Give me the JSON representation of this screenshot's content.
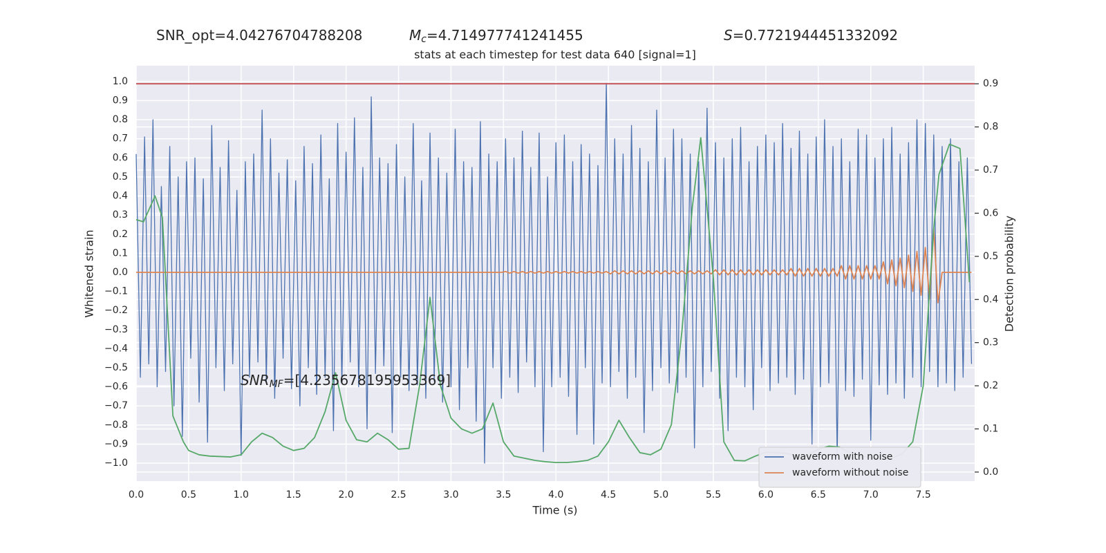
{
  "chart_data": {
    "type": "line",
    "title": "stats at each timestep for test data 640 [signal=1]",
    "annotations": [
      {
        "text": "SNR_opt=4.04276704788208"
      },
      {
        "symbol": "M",
        "subscript": "c",
        "text": "=4.714977741241455"
      },
      {
        "symbol": "S",
        "text": "=0.7721944451332092"
      },
      {
        "symbol": "SNR",
        "subscript": "MF",
        "text": "=[4.235678195953369]"
      }
    ],
    "xlabel": "Time (s)",
    "ylabel": "Whitened strain",
    "y2label": "Detection probability",
    "x": [
      0,
      0.04,
      0.08,
      0.12,
      0.16,
      0.2,
      0.24,
      0.28,
      0.32,
      0.36,
      0.4,
      0.44,
      0.48,
      0.52,
      0.56,
      0.6,
      0.64,
      0.68,
      0.72,
      0.76,
      0.8,
      0.84,
      0.88,
      0.92,
      0.96,
      1,
      1.04,
      1.08,
      1.12,
      1.16,
      1.2,
      1.24,
      1.28,
      1.32,
      1.36,
      1.4,
      1.44,
      1.48,
      1.52,
      1.56,
      1.6,
      1.64,
      1.68,
      1.72,
      1.76,
      1.8,
      1.84,
      1.88,
      1.92,
      1.96,
      2,
      2.04,
      2.08,
      2.12,
      2.16,
      2.2,
      2.24,
      2.28,
      2.32,
      2.36,
      2.4,
      2.44,
      2.48,
      2.52,
      2.56,
      2.6,
      2.64,
      2.68,
      2.72,
      2.76,
      2.8,
      2.84,
      2.88,
      2.92,
      2.96,
      3,
      3.04,
      3.08,
      3.12,
      3.16,
      3.2,
      3.24,
      3.28,
      3.32,
      3.36,
      3.4,
      3.44,
      3.48,
      3.52,
      3.56,
      3.6,
      3.64,
      3.68,
      3.72,
      3.76,
      3.8,
      3.84,
      3.88,
      3.92,
      3.96,
      4,
      4.04,
      4.08,
      4.12,
      4.16,
      4.2,
      4.24,
      4.28,
      4.32,
      4.36,
      4.4,
      4.44,
      4.48,
      4.52,
      4.56,
      4.6,
      4.64,
      4.68,
      4.72,
      4.76,
      4.8,
      4.84,
      4.88,
      4.92,
      4.96,
      5,
      5.04,
      5.08,
      5.12,
      5.16,
      5.2,
      5.24,
      5.28,
      5.32,
      5.36,
      5.4,
      5.44,
      5.48,
      5.52,
      5.56,
      5.6,
      5.64,
      5.68,
      5.72,
      5.76,
      5.8,
      5.84,
      5.88,
      5.92,
      5.96,
      6,
      6.04,
      6.08,
      6.12,
      6.16,
      6.2,
      6.24,
      6.28,
      6.32,
      6.36,
      6.4,
      6.44,
      6.48,
      6.52,
      6.56,
      6.6,
      6.64,
      6.68,
      6.72,
      6.76,
      6.8,
      6.84,
      6.88,
      6.92,
      6.96,
      7,
      7.04,
      7.08,
      7.12,
      7.16,
      7.2,
      7.24,
      7.28,
      7.32,
      7.36,
      7.4,
      7.44,
      7.48,
      7.52,
      7.56,
      7.6,
      7.64,
      7.68,
      7.72,
      7.76,
      7.8,
      7.84,
      7.88,
      7.92,
      7.96
    ],
    "series": [
      {
        "name": "waveform with noise",
        "color": "#4c72b0",
        "values": [
          0.62,
          -0.55,
          0.71,
          -0.48,
          0.8,
          -0.6,
          0.45,
          -0.52,
          0.66,
          -0.7,
          0.5,
          -0.86,
          0.58,
          -0.45,
          0.6,
          -0.68,
          0.49,
          -0.89,
          0.77,
          -0.5,
          0.55,
          -0.62,
          0.69,
          -0.48,
          0.43,
          -0.96,
          0.58,
          -0.55,
          0.62,
          -0.47,
          0.85,
          -0.58,
          0.7,
          -0.66,
          0.52,
          -0.45,
          0.59,
          -0.61,
          0.48,
          -0.7,
          0.66,
          -0.5,
          0.57,
          -0.64,
          0.72,
          -0.55,
          0.49,
          -0.83,
          0.78,
          -0.58,
          0.63,
          -0.47,
          0.81,
          -0.6,
          0.55,
          -0.82,
          0.92,
          -0.53,
          0.6,
          -0.49,
          0.57,
          -0.84,
          0.67,
          -0.55,
          0.5,
          -0.62,
          0.78,
          -0.59,
          0.48,
          -0.66,
          0.73,
          -0.57,
          0.6,
          -0.68,
          0.52,
          -0.6,
          0.75,
          -0.72,
          0.58,
          -0.5,
          0.55,
          -0.78,
          0.79,
          -1.0,
          0.62,
          -0.5,
          0.58,
          -0.66,
          0.7,
          -0.55,
          0.6,
          -0.63,
          0.74,
          -0.47,
          0.55,
          -0.6,
          0.73,
          -0.94,
          0.5,
          -0.6,
          0.68,
          -0.55,
          0.72,
          -0.65,
          0.58,
          -0.85,
          0.67,
          -0.5,
          0.62,
          -0.9,
          0.56,
          -0.58,
          0.99,
          -0.6,
          0.7,
          -0.52,
          0.62,
          -0.66,
          0.77,
          -0.55,
          0.65,
          -0.84,
          0.58,
          -0.62,
          0.85,
          -0.5,
          0.6,
          -0.58,
          0.75,
          -0.63,
          0.7,
          -0.55,
          0.62,
          -0.92,
          0.58,
          -0.6,
          0.86,
          -0.52,
          0.68,
          -0.66,
          0.6,
          -0.83,
          0.7,
          -0.55,
          0.76,
          -0.6,
          0.58,
          -0.72,
          0.66,
          -0.5,
          0.72,
          -0.62,
          0.68,
          -0.58,
          0.78,
          -0.55,
          0.65,
          -0.64,
          0.74,
          -0.56,
          0.62,
          -0.9,
          0.71,
          -0.6,
          0.8,
          -0.58,
          0.66,
          -0.97,
          0.7,
          -0.62,
          0.58,
          -0.65,
          0.75,
          -0.56,
          0.72,
          -0.88,
          0.6,
          -0.59,
          0.7,
          -0.64,
          0.76,
          -0.58,
          0.62,
          -0.66,
          0.68,
          -0.55,
          0.8,
          -0.6,
          0.78,
          -0.52,
          0.72,
          -0.6,
          0.66,
          -0.58,
          0.7,
          -0.62,
          0.58,
          -0.55,
          0.6,
          -0.48
        ]
      },
      {
        "name": "waveform without noise",
        "color": "#dd8452",
        "values": [
          0,
          0,
          0,
          0,
          0,
          0,
          0,
          0,
          0,
          0,
          0,
          0,
          0,
          0,
          0,
          0,
          0,
          0,
          0,
          0,
          0,
          0,
          0,
          0,
          0,
          0,
          0,
          0,
          0,
          0,
          0,
          0,
          0,
          0,
          0,
          0,
          0,
          0,
          0,
          0,
          0,
          0,
          0,
          0,
          0,
          0,
          0,
          0,
          0,
          0,
          0,
          0,
          0,
          0,
          0,
          0,
          0,
          0,
          0,
          0,
          0,
          0,
          0,
          0,
          0,
          0,
          0,
          0,
          0,
          0,
          0,
          0,
          0,
          0,
          0,
          0,
          0,
          0,
          0,
          0,
          0,
          0,
          0,
          0,
          0,
          0,
          0,
          0,
          0.004,
          -0.004,
          0.004,
          -0.004,
          0.004,
          -0.004,
          0.004,
          -0.004,
          0.004,
          -0.004,
          0.004,
          -0.004,
          0.004,
          -0.004,
          0.004,
          -0.004,
          0.004,
          -0.004,
          0.004,
          -0.004,
          0.004,
          -0.004,
          0.004,
          -0.004,
          0.004,
          -0.008,
          0.008,
          -0.008,
          0.008,
          -0.008,
          0.008,
          -0.008,
          0.008,
          -0.008,
          0.008,
          -0.008,
          0.008,
          -0.008,
          0.008,
          -0.008,
          0.008,
          -0.008,
          0.008,
          -0.008,
          0.008,
          -0.008,
          0.008,
          -0.008,
          0.008,
          -0.008,
          0.013,
          -0.013,
          0.013,
          -0.013,
          0.013,
          -0.013,
          0.013,
          -0.013,
          0.013,
          -0.013,
          0.013,
          -0.013,
          0.013,
          -0.013,
          0.013,
          -0.013,
          0.013,
          -0.013,
          0.02,
          -0.02,
          0.02,
          -0.02,
          0.02,
          -0.02,
          0.02,
          -0.02,
          0.02,
          -0.02,
          0.02,
          -0.02,
          0.035,
          -0.035,
          0.035,
          -0.035,
          0.035,
          -0.035,
          0.035,
          -0.035,
          0.035,
          -0.035,
          0.055,
          -0.06,
          0.065,
          -0.07,
          0.075,
          -0.08,
          0.09,
          -0.1,
          0.11,
          -0.12,
          0.13,
          -0.14,
          0.23,
          -0.16,
          0,
          0,
          0,
          0,
          0,
          0,
          0,
          0
        ]
      },
      {
        "color": "#55a868",
        "axis": "y2",
        "x": [
          0,
          0.07,
          0.18,
          0.25,
          0.35,
          0.45,
          0.5,
          0.6,
          0.7,
          0.9,
          1,
          1.1,
          1.2,
          1.3,
          1.4,
          1.5,
          1.6,
          1.7,
          1.8,
          1.9,
          2,
          2.1,
          2.2,
          2.3,
          2.4,
          2.5,
          2.6,
          2.7,
          2.8,
          2.9,
          3,
          3.1,
          3.2,
          3.3,
          3.4,
          3.5,
          3.6,
          3.7,
          3.8,
          3.9,
          4,
          4.1,
          4.2,
          4.3,
          4.4,
          4.5,
          4.6,
          4.7,
          4.8,
          4.9,
          5,
          5.1,
          5.2,
          5.3,
          5.38,
          5.5,
          5.6,
          5.7,
          5.8,
          5.9,
          6,
          6.1,
          6.2,
          6.3,
          6.4,
          6.5,
          6.6,
          6.7,
          6.8,
          6.9,
          7,
          7.1,
          7.2,
          7.3,
          7.4,
          7.5,
          7.6,
          7.65,
          7.75,
          7.85,
          7.94
        ],
        "values": [
          0.585,
          0.58,
          0.64,
          0.59,
          0.13,
          0.07,
          0.05,
          0.04,
          0.037,
          0.035,
          0.04,
          0.07,
          0.09,
          0.08,
          0.06,
          0.05,
          0.055,
          0.08,
          0.14,
          0.23,
          0.12,
          0.075,
          0.07,
          0.09,
          0.075,
          0.053,
          0.055,
          0.2,
          0.405,
          0.2,
          0.125,
          0.1,
          0.09,
          0.1,
          0.16,
          0.07,
          0.037,
          0.032,
          0.027,
          0.024,
          0.022,
          0.022,
          0.024,
          0.027,
          0.037,
          0.07,
          0.12,
          0.08,
          0.045,
          0.04,
          0.053,
          0.11,
          0.325,
          0.615,
          0.775,
          0.45,
          0.07,
          0.027,
          0.026,
          0.037,
          0.046,
          0.045,
          0.043,
          0.037,
          0.04,
          0.053,
          0.06,
          0.058,
          0.045,
          0.037,
          0.034,
          0.03,
          0.032,
          0.043,
          0.07,
          0.2,
          0.565,
          0.69,
          0.76,
          0.75,
          0.44
        ]
      }
    ],
    "hline": {
      "value": 0.9,
      "color": "#c44e52",
      "axis": "y2"
    },
    "xlim": [
      0,
      7.99
    ],
    "ylim": [
      -1.094,
      1.083
    ],
    "y2lim": [
      -0.021,
      0.942
    ],
    "xticks": [
      {
        "value": 0,
        "label": "0.0"
      },
      {
        "value": 0.5,
        "label": "0.5"
      },
      {
        "value": 1,
        "label": "1.0"
      },
      {
        "value": 1.5,
        "label": "1.5"
      },
      {
        "value": 2,
        "label": "2.0"
      },
      {
        "value": 2.5,
        "label": "2.5"
      },
      {
        "value": 3,
        "label": "3.0"
      },
      {
        "value": 3.5,
        "label": "3.5"
      },
      {
        "value": 4,
        "label": "4.0"
      },
      {
        "value": 4.5,
        "label": "4.5"
      },
      {
        "value": 5,
        "label": "5.0"
      },
      {
        "value": 5.5,
        "label": "5.5"
      },
      {
        "value": 6,
        "label": "6.0"
      },
      {
        "value": 6.5,
        "label": "6.5"
      },
      {
        "value": 7,
        "label": "7.0"
      },
      {
        "value": 7.5,
        "label": "7.5"
      }
    ],
    "yticks": [
      {
        "value": -1,
        "label": "−1.0"
      },
      {
        "value": -0.9,
        "label": "−0.9"
      },
      {
        "value": -0.8,
        "label": "−0.8"
      },
      {
        "value": -0.7,
        "label": "−0.7"
      },
      {
        "value": -0.6,
        "label": "−0.6"
      },
      {
        "value": -0.5,
        "label": "−0.5"
      },
      {
        "value": -0.4,
        "label": "−0.4"
      },
      {
        "value": -0.3,
        "label": "−0.3"
      },
      {
        "value": -0.2,
        "label": "−0.2"
      },
      {
        "value": -0.1,
        "label": "−0.1"
      },
      {
        "value": 0,
        "label": "0.0"
      },
      {
        "value": 0.1,
        "label": "0.1"
      },
      {
        "value": 0.2,
        "label": "0.2"
      },
      {
        "value": 0.3,
        "label": "0.3"
      },
      {
        "value": 0.4,
        "label": "0.4"
      },
      {
        "value": 0.5,
        "label": "0.5"
      },
      {
        "value": 0.6,
        "label": "0.6"
      },
      {
        "value": 0.7,
        "label": "0.7"
      },
      {
        "value": 0.8,
        "label": "0.8"
      },
      {
        "value": 0.9,
        "label": "0.9"
      },
      {
        "value": 1,
        "label": "1.0"
      }
    ],
    "y2ticks": [
      {
        "value": 0,
        "label": "0.0"
      },
      {
        "value": 0.1,
        "label": "0.1"
      },
      {
        "value": 0.2,
        "label": "0.2"
      },
      {
        "value": 0.3,
        "label": "0.3"
      },
      {
        "value": 0.4,
        "label": "0.4"
      },
      {
        "value": 0.5,
        "label": "0.5"
      },
      {
        "value": 0.6,
        "label": "0.6"
      },
      {
        "value": 0.7,
        "label": "0.7"
      },
      {
        "value": 0.8,
        "label": "0.8"
      },
      {
        "value": 0.9,
        "label": "0.9"
      }
    ],
    "grid": true,
    "legend": "lower right"
  }
}
